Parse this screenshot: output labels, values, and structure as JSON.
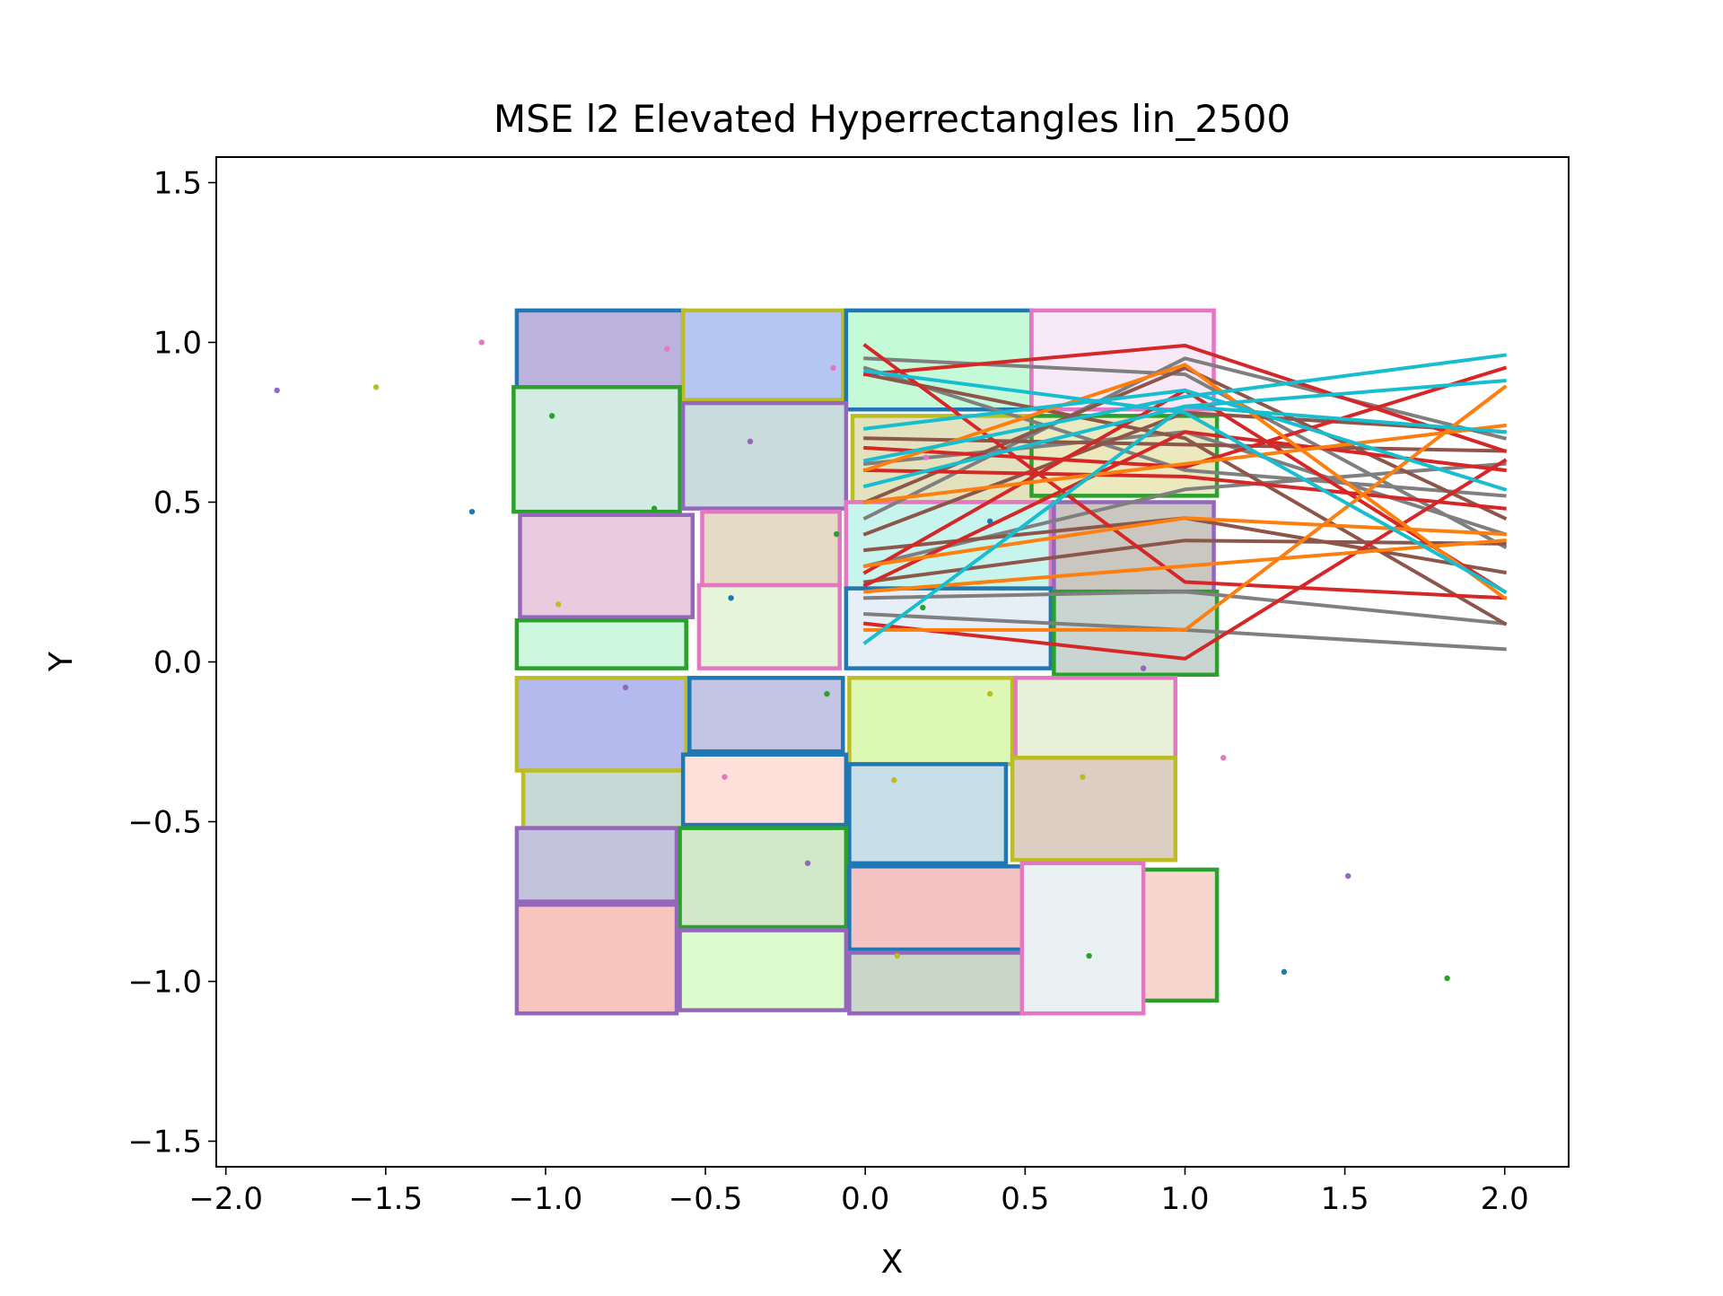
{
  "chart_data": {
    "type": "scatter",
    "title": "MSE l2 Elevated Hyperrectangles lin_2500",
    "xlabel": "X",
    "ylabel": "Y",
    "xlim": [
      -2.03,
      2.2
    ],
    "ylim": [
      -1.58,
      1.58
    ],
    "xticks": [
      -2.0,
      -1.5,
      -1.0,
      -0.5,
      0.0,
      0.5,
      1.0,
      1.5,
      2.0
    ],
    "xtick_labels": [
      "−2.0",
      "−1.5",
      "−1.0",
      "−0.5",
      "0.0",
      "0.5",
      "1.0",
      "1.5",
      "2.0"
    ],
    "yticks": [
      -1.5,
      -1.0,
      -0.5,
      0.0,
      0.5,
      1.0,
      1.5
    ],
    "ytick_labels": [
      "−1.5",
      "−1.0",
      "−0.5",
      "0.0",
      "0.5",
      "1.0",
      "1.5"
    ],
    "grid": false,
    "legend": "none",
    "rectangles": [
      {
        "x0": -1.09,
        "x1": -0.57,
        "y0": 0.78,
        "y1": 1.1,
        "edge": "#1f77b4",
        "fill": "#bbb3dd"
      },
      {
        "x0": -0.57,
        "x1": -0.07,
        "y0": 0.82,
        "y1": 1.1,
        "edge": "#bcbd22",
        "fill": "#b6c6f2"
      },
      {
        "x0": -0.06,
        "x1": 0.52,
        "y0": 0.79,
        "y1": 1.1,
        "edge": "#1f77b4",
        "fill": "#c4fad8"
      },
      {
        "x0": 0.52,
        "x1": 1.09,
        "y0": 0.79,
        "y1": 1.1,
        "edge": "#e377c2",
        "fill": "#f7e9f8"
      },
      {
        "x0": -1.1,
        "x1": -0.58,
        "y0": 0.47,
        "y1": 0.86,
        "edge": "#2ca02c",
        "fill": "#d4ebe4"
      },
      {
        "x0": -0.57,
        "x1": -0.06,
        "y0": 0.48,
        "y1": 0.81,
        "edge": "#9467bd",
        "fill": "#c9dbdc"
      },
      {
        "x0": -0.04,
        "x1": 0.55,
        "y0": 0.5,
        "y1": 0.77,
        "edge": "#bcbd22",
        "fill": "#e2e2bf"
      },
      {
        "x0": 0.52,
        "x1": 1.1,
        "y0": 0.52,
        "y1": 0.77,
        "edge": "#2ca02c",
        "fill": "#ece9bf"
      },
      {
        "x0": -1.08,
        "x1": -0.54,
        "y0": 0.14,
        "y1": 0.46,
        "edge": "#9467bd",
        "fill": "#e9cadf"
      },
      {
        "x0": -0.51,
        "x1": -0.08,
        "y0": 0.24,
        "y1": 0.47,
        "edge": "#e377c2",
        "fill": "#e5dac6"
      },
      {
        "x0": -0.06,
        "x1": 0.58,
        "y0": 0.23,
        "y1": 0.5,
        "edge": "#e377c2",
        "fill": "#c7f4ec"
      },
      {
        "x0": 0.59,
        "x1": 1.09,
        "y0": 0.22,
        "y1": 0.5,
        "edge": "#9467bd",
        "fill": "#c9c7c0"
      },
      {
        "x0": -1.09,
        "x1": -0.56,
        "y0": -0.02,
        "y1": 0.13,
        "edge": "#2ca02c",
        "fill": "#cdf7df"
      },
      {
        "x0": -0.52,
        "x1": -0.08,
        "y0": -0.02,
        "y1": 0.24,
        "edge": "#e377c2",
        "fill": "#e5f5d9"
      },
      {
        "x0": -0.06,
        "x1": 0.58,
        "y0": -0.02,
        "y1": 0.23,
        "edge": "#1f77b4",
        "fill": "#e6eff8"
      },
      {
        "x0": 0.59,
        "x1": 1.1,
        "y0": -0.04,
        "y1": 0.22,
        "edge": "#2ca02c",
        "fill": "#c9d5d1"
      },
      {
        "x0": -1.09,
        "x1": -0.56,
        "y0": -0.34,
        "y1": -0.05,
        "edge": "#bcbd22",
        "fill": "#b4baee"
      },
      {
        "x0": -0.55,
        "x1": -0.07,
        "y0": -0.28,
        "y1": -0.05,
        "edge": "#1f77b4",
        "fill": "#c3c5e4"
      },
      {
        "x0": -0.05,
        "x1": 0.46,
        "y0": -0.32,
        "y1": -0.05,
        "edge": "#bcbd22",
        "fill": "#ddf7b4"
      },
      {
        "x0": 0.47,
        "x1": 0.97,
        "y0": -0.3,
        "y1": -0.05,
        "edge": "#e377c2",
        "fill": "#e7f1da"
      },
      {
        "x0": -1.07,
        "x1": -0.57,
        "y0": -0.52,
        "y1": -0.34,
        "edge": "#bcbd22",
        "fill": "#c8d8d4"
      },
      {
        "x0": -0.57,
        "x1": -0.06,
        "y0": -0.51,
        "y1": -0.29,
        "edge": "#1f77b4",
        "fill": "#fde0da"
      },
      {
        "x0": -0.05,
        "x1": 0.44,
        "y0": -0.63,
        "y1": -0.32,
        "edge": "#1f77b4",
        "fill": "#c8dfe8"
      },
      {
        "x0": 0.46,
        "x1": 0.97,
        "y0": -0.62,
        "y1": -0.3,
        "edge": "#bcbd22",
        "fill": "#dccec1"
      },
      {
        "x0": -1.09,
        "x1": -0.59,
        "y0": -0.75,
        "y1": -0.52,
        "edge": "#9467bd",
        "fill": "#c3c3dc"
      },
      {
        "x0": -0.58,
        "x1": -0.06,
        "y0": -0.83,
        "y1": -0.52,
        "edge": "#2ca02c",
        "fill": "#d1e8c9"
      },
      {
        "x0": -0.05,
        "x1": 0.5,
        "y0": -0.9,
        "y1": -0.64,
        "edge": "#1f77b4",
        "fill": "#f4c3c3"
      },
      {
        "x0": 0.52,
        "x1": 1.1,
        "y0": -1.06,
        "y1": -0.65,
        "edge": "#2ca02c",
        "fill": "#f9d6cd"
      },
      {
        "x0": -1.09,
        "x1": -0.59,
        "y0": -1.1,
        "y1": -0.76,
        "edge": "#9467bd",
        "fill": "#f8c5be"
      },
      {
        "x0": -0.58,
        "x1": -0.06,
        "y0": -1.09,
        "y1": -0.84,
        "edge": "#9467bd",
        "fill": "#dcfcce"
      },
      {
        "x0": -0.05,
        "x1": 0.5,
        "y0": -1.1,
        "y1": -0.91,
        "edge": "#9467bd",
        "fill": "#cad6c7"
      },
      {
        "x0": 0.49,
        "x1": 0.87,
        "y0": -1.1,
        "y1": -0.63,
        "edge": "#e377c2",
        "fill": "#e9f1f3"
      }
    ],
    "points": [
      {
        "x": -1.84,
        "y": 0.85,
        "color": "#9467bd"
      },
      {
        "x": -1.53,
        "y": 0.86,
        "color": "#bcbd22"
      },
      {
        "x": -1.2,
        "y": 1.0,
        "color": "#e377c2"
      },
      {
        "x": -1.23,
        "y": 0.47,
        "color": "#1f77b4"
      },
      {
        "x": -0.98,
        "y": 0.77,
        "color": "#2ca02c"
      },
      {
        "x": -0.62,
        "y": 0.98,
        "color": "#e377c2"
      },
      {
        "x": -0.1,
        "y": 0.92,
        "color": "#e377c2"
      },
      {
        "x": -0.36,
        "y": 0.69,
        "color": "#9467bd"
      },
      {
        "x": -0.66,
        "y": 0.48,
        "color": "#2ca02c"
      },
      {
        "x": -0.96,
        "y": 0.18,
        "color": "#bcbd22"
      },
      {
        "x": -0.42,
        "y": 0.2,
        "color": "#1f77b4"
      },
      {
        "x": -0.09,
        "y": 0.4,
        "color": "#2ca02c"
      },
      {
        "x": 0.18,
        "y": 0.17,
        "color": "#2ca02c"
      },
      {
        "x": 0.39,
        "y": 0.44,
        "color": "#1f77b4"
      },
      {
        "x": 0.19,
        "y": 0.64,
        "color": "#e377c2"
      },
      {
        "x": -0.75,
        "y": -0.08,
        "color": "#9467bd"
      },
      {
        "x": -0.12,
        "y": -0.1,
        "color": "#2ca02c"
      },
      {
        "x": 0.39,
        "y": -0.1,
        "color": "#bcbd22"
      },
      {
        "x": 0.87,
        "y": -0.02,
        "color": "#9467bd"
      },
      {
        "x": 1.12,
        "y": -0.3,
        "color": "#e377c2"
      },
      {
        "x": -0.44,
        "y": -0.36,
        "color": "#e377c2"
      },
      {
        "x": 0.09,
        "y": -0.37,
        "color": "#bcbd22"
      },
      {
        "x": 0.68,
        "y": -0.36,
        "color": "#bcbd22"
      },
      {
        "x": -0.18,
        "y": -0.63,
        "color": "#9467bd"
      },
      {
        "x": 0.1,
        "y": -0.92,
        "color": "#bcbd22"
      },
      {
        "x": 0.7,
        "y": -0.92,
        "color": "#2ca02c"
      },
      {
        "x": 1.51,
        "y": -0.67,
        "color": "#9467bd"
      },
      {
        "x": 1.31,
        "y": -0.97,
        "color": "#1f77b4"
      },
      {
        "x": 1.82,
        "y": -0.99,
        "color": "#2ca02c"
      }
    ],
    "lines": [
      {
        "color": "#7f7f7f",
        "x": [
          0,
          1,
          2
        ],
        "y": [
          0.95,
          0.9,
          0.36
        ]
      },
      {
        "color": "#7f7f7f",
        "x": [
          0,
          1,
          2
        ],
        "y": [
          0.92,
          0.6,
          0.52
        ]
      },
      {
        "color": "#7f7f7f",
        "x": [
          0,
          1,
          2
        ],
        "y": [
          0.62,
          0.72,
          0.4
        ]
      },
      {
        "color": "#7f7f7f",
        "x": [
          0,
          1,
          2
        ],
        "y": [
          0.45,
          0.95,
          0.7
        ]
      },
      {
        "color": "#7f7f7f",
        "x": [
          0,
          1,
          2
        ],
        "y": [
          0.3,
          0.54,
          0.62
        ]
      },
      {
        "color": "#7f7f7f",
        "x": [
          0,
          1,
          2
        ],
        "y": [
          0.2,
          0.22,
          0.12
        ]
      },
      {
        "color": "#7f7f7f",
        "x": [
          0,
          1,
          2
        ],
        "y": [
          0.15,
          0.1,
          0.04
        ]
      },
      {
        "color": "#8c564b",
        "x": [
          0,
          1,
          2
        ],
        "y": [
          0.9,
          0.7,
          0.12
        ]
      },
      {
        "color": "#8c564b",
        "x": [
          0,
          1,
          2
        ],
        "y": [
          0.7,
          0.68,
          0.66
        ]
      },
      {
        "color": "#8c564b",
        "x": [
          0,
          1,
          2
        ],
        "y": [
          0.5,
          0.92,
          0.45
        ]
      },
      {
        "color": "#8c564b",
        "x": [
          0,
          1,
          2
        ],
        "y": [
          0.4,
          0.78,
          0.72
        ]
      },
      {
        "color": "#8c564b",
        "x": [
          0,
          1,
          2
        ],
        "y": [
          0.35,
          0.45,
          0.28
        ]
      },
      {
        "color": "#8c564b",
        "x": [
          0,
          1,
          2
        ],
        "y": [
          0.25,
          0.38,
          0.37
        ]
      },
      {
        "color": "#d62728",
        "x": [
          0,
          1,
          2
        ],
        "y": [
          0.99,
          0.25,
          0.2
        ]
      },
      {
        "color": "#d62728",
        "x": [
          0,
          1,
          2
        ],
        "y": [
          0.9,
          0.99,
          0.66
        ]
      },
      {
        "color": "#d62728",
        "x": [
          0,
          1,
          2
        ],
        "y": [
          0.67,
          0.61,
          0.92
        ]
      },
      {
        "color": "#d62728",
        "x": [
          0,
          1,
          2
        ],
        "y": [
          0.6,
          0.58,
          0.48
        ]
      },
      {
        "color": "#d62728",
        "x": [
          0,
          1,
          2
        ],
        "y": [
          0.28,
          0.85,
          0.22
        ]
      },
      {
        "color": "#d62728",
        "x": [
          0,
          1,
          2
        ],
        "y": [
          0.24,
          0.72,
          0.6
        ]
      },
      {
        "color": "#d62728",
        "x": [
          0,
          1,
          2
        ],
        "y": [
          0.12,
          0.01,
          0.63
        ]
      },
      {
        "color": "#ff7f0e",
        "x": [
          0,
          1,
          2
        ],
        "y": [
          0.6,
          0.93,
          0.2
        ]
      },
      {
        "color": "#ff7f0e",
        "x": [
          0,
          1,
          2
        ],
        "y": [
          0.5,
          0.62,
          0.74
        ]
      },
      {
        "color": "#ff7f0e",
        "x": [
          0,
          1,
          2
        ],
        "y": [
          0.3,
          0.45,
          0.4
        ]
      },
      {
        "color": "#ff7f0e",
        "x": [
          0,
          1,
          2
        ],
        "y": [
          0.22,
          0.3,
          0.38
        ]
      },
      {
        "color": "#ff7f0e",
        "x": [
          0,
          1,
          2
        ],
        "y": [
          0.1,
          0.1,
          0.86
        ]
      },
      {
        "color": "#17becf",
        "x": [
          0,
          1,
          2
        ],
        "y": [
          0.91,
          0.78,
          0.22
        ]
      },
      {
        "color": "#17becf",
        "x": [
          0,
          1,
          2
        ],
        "y": [
          0.73,
          0.85,
          0.54
        ]
      },
      {
        "color": "#17becf",
        "x": [
          0,
          1,
          2
        ],
        "y": [
          0.63,
          0.83,
          0.96
        ]
      },
      {
        "color": "#17becf",
        "x": [
          0,
          1,
          2
        ],
        "y": [
          0.55,
          0.8,
          0.88
        ]
      },
      {
        "color": "#17becf",
        "x": [
          0,
          1,
          2
        ],
        "y": [
          0.06,
          0.8,
          0.72
        ]
      }
    ]
  }
}
